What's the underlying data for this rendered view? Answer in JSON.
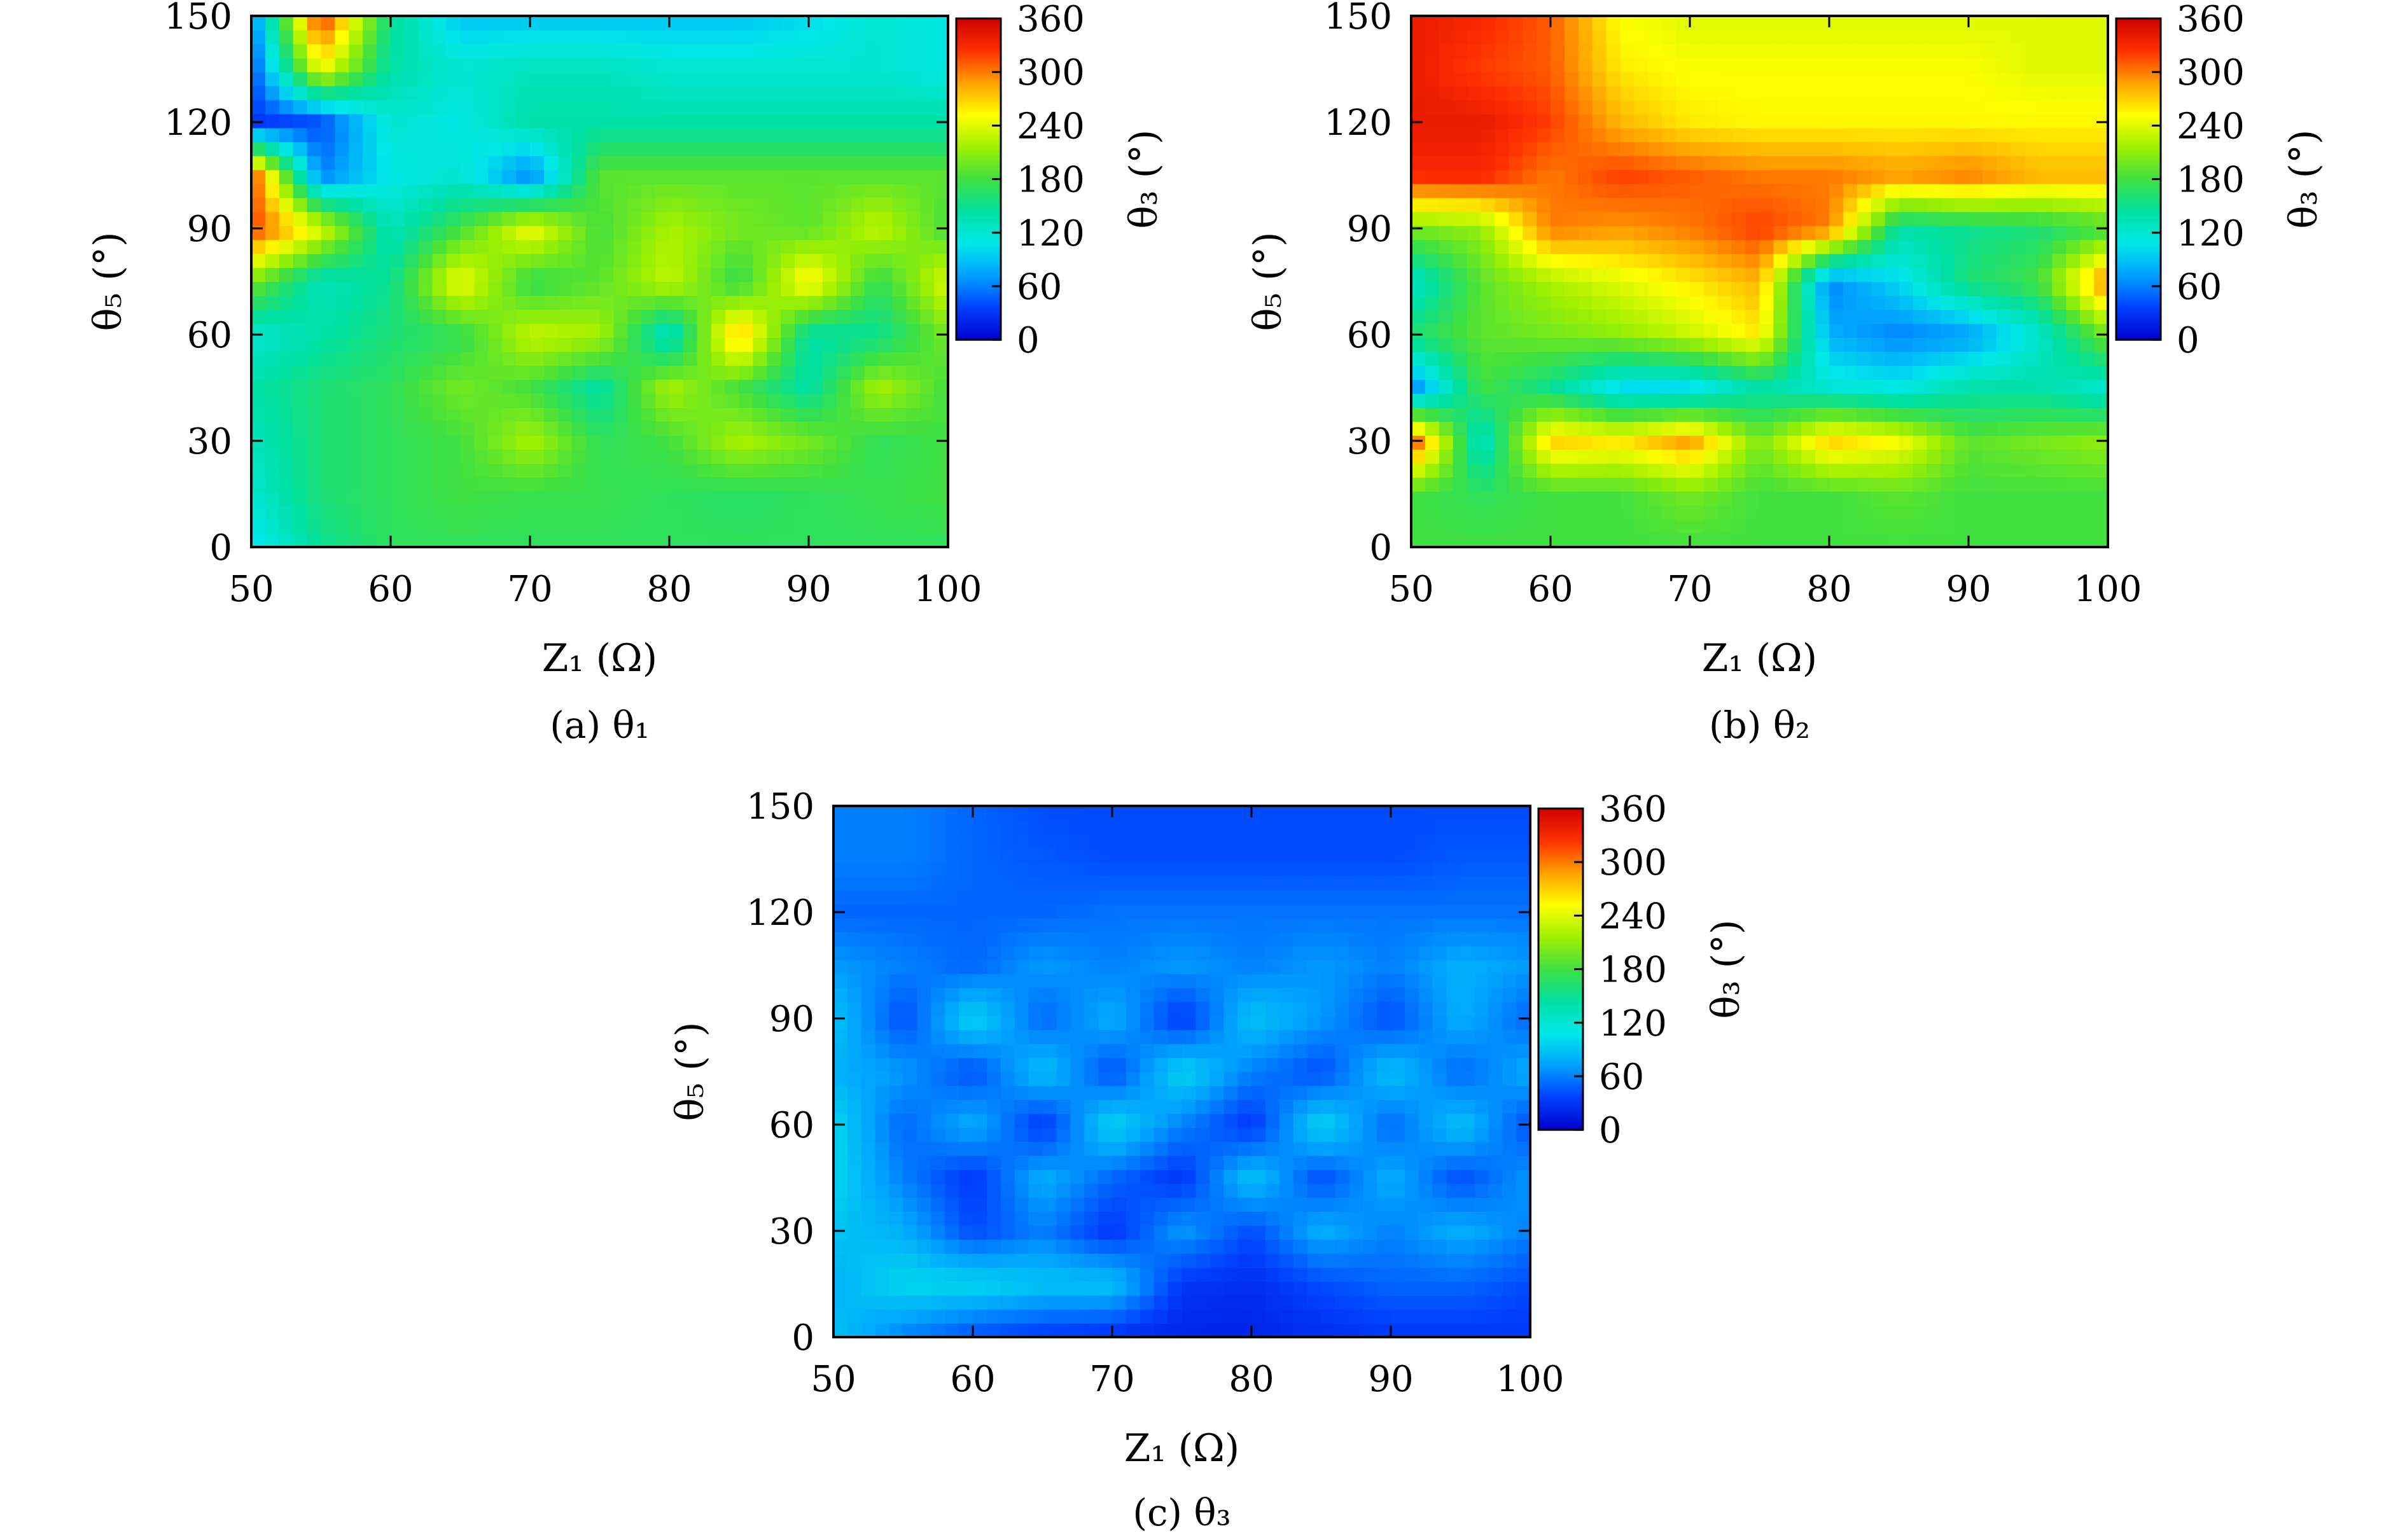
{
  "figure": {
    "panels": [
      {
        "id": "a",
        "caption": "(a) θ₁"
      },
      {
        "id": "b",
        "caption": "(b) θ₂"
      },
      {
        "id": "c",
        "caption": "(c) θ₃"
      }
    ]
  },
  "chart_data": [
    {
      "type": "heatmap",
      "caption": "(a) θ₁",
      "xlabel": "Z₁ (Ω)",
      "ylabel": "θ₅ (°)",
      "colorbar_label": "θ₃ (°)",
      "xlim": [
        50,
        100
      ],
      "ylim": [
        0,
        150
      ],
      "x_ticks": [
        50,
        60,
        70,
        80,
        90,
        100
      ],
      "y_ticks": [
        0,
        30,
        60,
        90,
        120,
        150
      ],
      "colorbar_ticks": [
        0,
        60,
        120,
        180,
        240,
        300,
        360
      ],
      "colorbar_range": [
        0,
        360
      ],
      "colormap": [
        "#0000cc",
        "#0040ff",
        "#00a0ff",
        "#00e8e8",
        "#00e0a0",
        "#40e040",
        "#a0f000",
        "#ffff00",
        "#ffa000",
        "#ff3000",
        "#d00000"
      ],
      "x": [
        50,
        55,
        60,
        65,
        70,
        75,
        80,
        85,
        90,
        95,
        100
      ],
      "y": [
        0,
        15,
        30,
        45,
        60,
        75,
        90,
        105,
        120,
        135,
        150
      ],
      "z": [
        [
          100,
          150,
          170,
          170,
          170,
          170,
          170,
          170,
          170,
          170,
          170
        ],
        [
          120,
          160,
          170,
          180,
          175,
          175,
          170,
          165,
          170,
          175,
          180
        ],
        [
          130,
          160,
          170,
          180,
          220,
          170,
          180,
          220,
          200,
          170,
          180
        ],
        [
          140,
          160,
          170,
          200,
          180,
          140,
          220,
          180,
          140,
          220,
          180
        ],
        [
          120,
          140,
          160,
          170,
          230,
          220,
          120,
          280,
          140,
          150,
          200
        ],
        [
          200,
          130,
          150,
          250,
          170,
          190,
          230,
          170,
          260,
          170,
          240
        ],
        [
          320,
          240,
          130,
          180,
          250,
          180,
          220,
          200,
          190,
          230,
          180
        ],
        [
          320,
          60,
          110,
          120,
          60,
          190,
          190,
          190,
          190,
          190,
          190
        ],
        [
          30,
          40,
          120,
          110,
          140,
          140,
          140,
          140,
          140,
          140,
          140
        ],
        [
          40,
          250,
          140,
          120,
          130,
          130,
          120,
          120,
          120,
          120,
          110
        ],
        [
          60,
          330,
          150,
          90,
          90,
          90,
          90,
          90,
          100,
          120,
          110
        ]
      ]
    },
    {
      "type": "heatmap",
      "caption": "(b) θ₂",
      "xlabel": "Z₁ (Ω)",
      "ylabel": "θ₅ (°)",
      "colorbar_label": "θ₃ (°)",
      "xlim": [
        50,
        100
      ],
      "ylim": [
        0,
        150
      ],
      "x_ticks": [
        50,
        60,
        70,
        80,
        90,
        100
      ],
      "y_ticks": [
        0,
        30,
        60,
        90,
        120,
        150
      ],
      "colorbar_ticks": [
        0,
        60,
        120,
        180,
        240,
        300,
        360
      ],
      "colorbar_range": [
        0,
        360
      ],
      "colormap": [
        "#0000cc",
        "#0040ff",
        "#00a0ff",
        "#00e8e8",
        "#00e0a0",
        "#40e040",
        "#a0f000",
        "#ffff00",
        "#ffa000",
        "#ff3000",
        "#d00000"
      ],
      "x": [
        50,
        55,
        60,
        65,
        70,
        75,
        80,
        85,
        90,
        95,
        100
      ],
      "y": [
        0,
        15,
        30,
        45,
        60,
        75,
        90,
        105,
        120,
        135,
        150
      ],
      "z": [
        [
          180,
          180,
          180,
          180,
          180,
          180,
          180,
          180,
          180,
          180,
          180
        ],
        [
          180,
          170,
          180,
          180,
          200,
          180,
          180,
          190,
          180,
          180,
          180
        ],
        [
          320,
          120,
          270,
          260,
          290,
          200,
          270,
          250,
          190,
          200,
          210
        ],
        [
          60,
          180,
          150,
          100,
          100,
          140,
          120,
          110,
          140,
          140,
          120
        ],
        [
          160,
          190,
          200,
          210,
          230,
          260,
          80,
          60,
          70,
          120,
          200
        ],
        [
          120,
          190,
          220,
          240,
          260,
          280,
          60,
          100,
          160,
          180,
          300
        ],
        [
          200,
          210,
          300,
          290,
          300,
          320,
          300,
          140,
          150,
          160,
          180
        ],
        [
          330,
          330,
          300,
          320,
          310,
          300,
          300,
          290,
          300,
          280,
          280
        ],
        [
          340,
          340,
          320,
          280,
          260,
          255,
          255,
          255,
          255,
          255,
          255
        ],
        [
          340,
          320,
          310,
          260,
          250,
          250,
          250,
          250,
          250,
          240,
          240
        ],
        [
          340,
          330,
          310,
          250,
          240,
          240,
          240,
          240,
          240,
          240,
          240
        ]
      ]
    },
    {
      "type": "heatmap",
      "caption": "(c) θ₃",
      "xlabel": "Z₁ (Ω)",
      "ylabel": "θ₅ (°)",
      "colorbar_label": "θ₃ (°)",
      "xlim": [
        50,
        100
      ],
      "ylim": [
        0,
        150
      ],
      "x_ticks": [
        50,
        60,
        70,
        80,
        90,
        100
      ],
      "y_ticks": [
        0,
        30,
        60,
        90,
        120,
        150
      ],
      "colorbar_ticks": [
        0,
        60,
        120,
        180,
        240,
        300,
        360
      ],
      "colorbar_range": [
        0,
        360
      ],
      "colormap": [
        "#0000cc",
        "#0040ff",
        "#00a0ff",
        "#00e8e8",
        "#00e0a0",
        "#40e040",
        "#a0f000",
        "#ffff00",
        "#ffa000",
        "#ff3000",
        "#d00000"
      ],
      "x": [
        50,
        55,
        60,
        65,
        70,
        75,
        80,
        85,
        90,
        95,
        100
      ],
      "y": [
        0,
        15,
        30,
        45,
        60,
        75,
        90,
        105,
        120,
        135,
        150
      ],
      "z": [
        [
          90,
          60,
          40,
          30,
          25,
          20,
          20,
          25,
          30,
          30,
          30
        ],
        [
          80,
          100,
          100,
          90,
          90,
          30,
          25,
          40,
          50,
          50,
          40
        ],
        [
          90,
          80,
          40,
          60,
          30,
          70,
          40,
          80,
          60,
          80,
          60
        ],
        [
          100,
          60,
          30,
          80,
          50,
          30,
          90,
          40,
          80,
          40,
          70
        ],
        [
          100,
          50,
          80,
          30,
          100,
          60,
          30,
          100,
          50,
          90,
          40
        ],
        [
          80,
          70,
          40,
          90,
          40,
          100,
          60,
          40,
          90,
          50,
          80
        ],
        [
          90,
          40,
          100,
          50,
          80,
          30,
          90,
          70,
          40,
          80,
          50
        ],
        [
          70,
          60,
          50,
          70,
          60,
          70,
          60,
          70,
          60,
          80,
          70
        ],
        [
          50,
          50,
          50,
          50,
          55,
          55,
          55,
          55,
          55,
          55,
          55
        ],
        [
          60,
          60,
          50,
          45,
          40,
          40,
          40,
          40,
          40,
          45,
          45
        ],
        [
          60,
          60,
          50,
          40,
          40,
          40,
          40,
          40,
          40,
          40,
          40
        ]
      ]
    }
  ]
}
